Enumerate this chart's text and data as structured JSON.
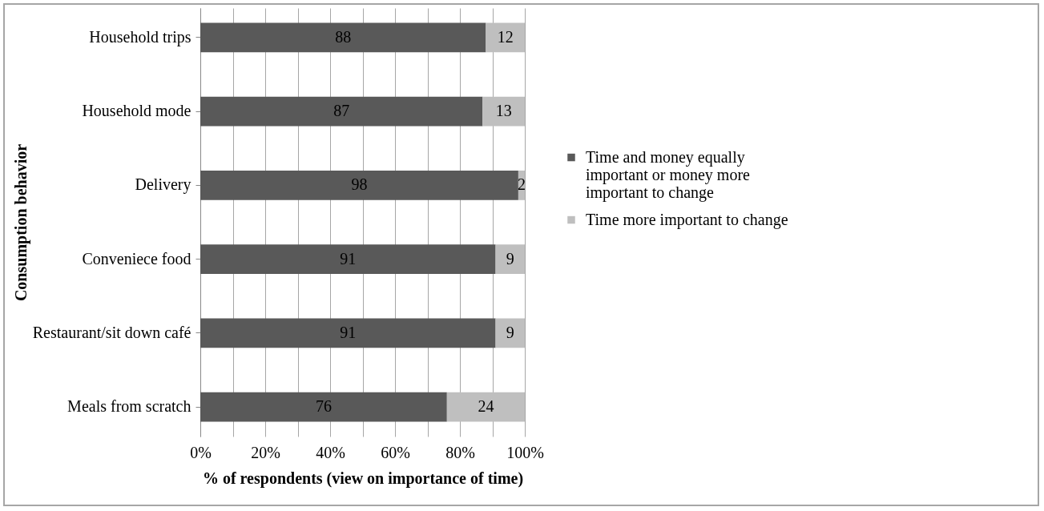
{
  "chart_data": {
    "type": "bar",
    "orientation": "horizontal",
    "stacked": true,
    "xlabel": "% of respondents (view on importance of time)",
    "ylabel": "Consumption behavior",
    "categories": [
      "Household trips",
      "Household mode",
      "Delivery",
      "Conveniece food",
      "Restaurant/sit down café",
      "Meals from scratch"
    ],
    "series": [
      {
        "name": "Time and money equally important or money more important to change",
        "color": "#595959",
        "values": [
          88,
          87,
          98,
          91,
          91,
          76
        ]
      },
      {
        "name": "Time more important to change",
        "color": "#bfbfbf",
        "values": [
          12,
          13,
          2,
          9,
          9,
          24
        ]
      }
    ],
    "xlim": [
      0,
      100
    ],
    "xticks": [
      {
        "value": 0,
        "label": "0%"
      },
      {
        "value": 10,
        "label": null
      },
      {
        "value": 20,
        "label": "20%"
      },
      {
        "value": 30,
        "label": null
      },
      {
        "value": 40,
        "label": "40%"
      },
      {
        "value": 50,
        "label": null
      },
      {
        "value": 60,
        "label": "60%"
      },
      {
        "value": 70,
        "label": null
      },
      {
        "value": 80,
        "label": "80%"
      },
      {
        "value": 90,
        "label": null
      },
      {
        "value": 100,
        "label": "100%"
      }
    ],
    "grid": "x",
    "legend": "right",
    "data_labels": true
  }
}
